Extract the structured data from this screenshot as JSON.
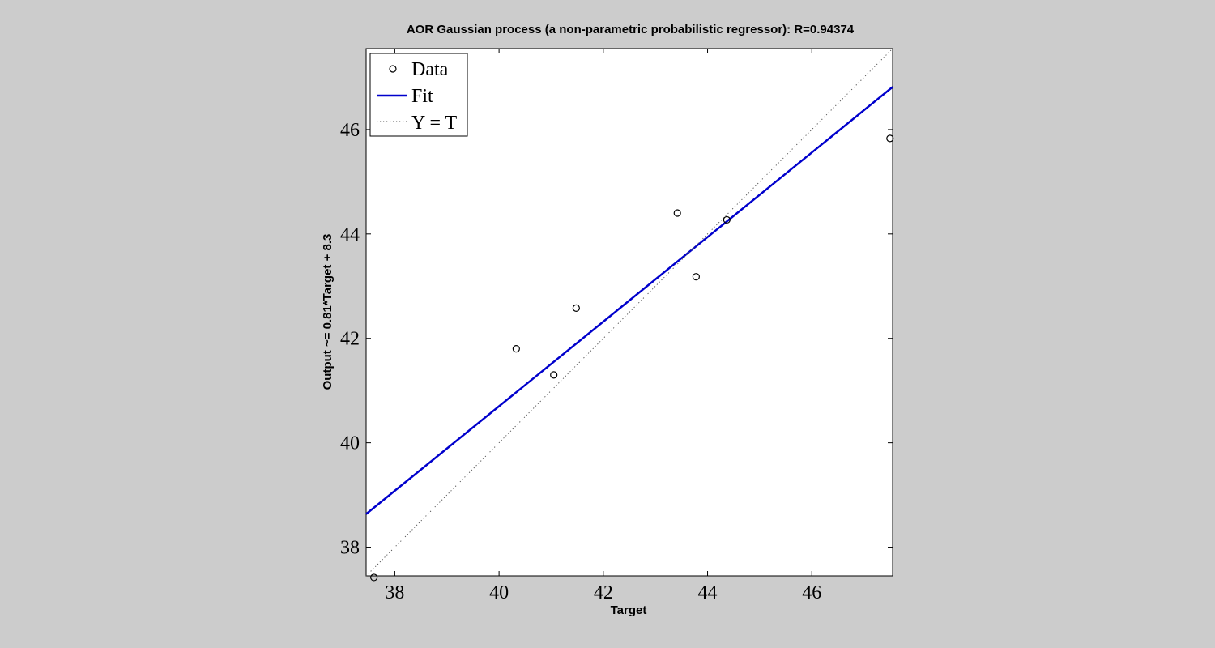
{
  "chart_data": {
    "type": "scatter",
    "title": "AOR Gaussian process (a non-parametric probabilistic regressor): R=0.94374",
    "xlabel": "Target",
    "ylabel": "Output ~= 0.81*Target + 8.3",
    "xlim": [
      37.45,
      47.55
    ],
    "ylim": [
      37.45,
      47.55
    ],
    "xticks": [
      38,
      40,
      42,
      44,
      46
    ],
    "yticks": [
      38,
      40,
      42,
      44,
      46
    ],
    "grid": false,
    "legend_position": "top-left",
    "series": [
      {
        "name": "Data",
        "kind": "markers",
        "color": "#000000",
        "x": [
          37.6,
          40.33,
          41.05,
          41.48,
          43.42,
          43.78,
          44.37,
          47.5
        ],
        "y": [
          37.42,
          41.8,
          41.3,
          42.58,
          44.4,
          43.18,
          44.27,
          45.83
        ]
      },
      {
        "name": "Fit",
        "kind": "line",
        "color": "#0000cc",
        "slope": 0.81,
        "intercept": 8.3
      },
      {
        "name": "Y = T",
        "kind": "dotted-line",
        "color": "#555555",
        "slope": 1,
        "intercept": 0
      }
    ]
  }
}
